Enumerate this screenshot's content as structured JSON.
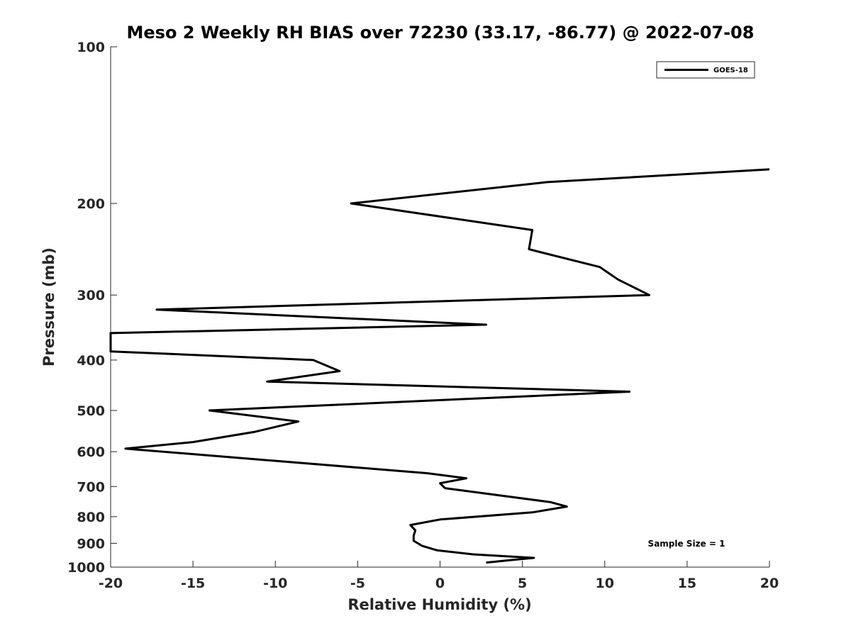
{
  "chart_data": {
    "type": "line",
    "title": "Meso 2 Weekly RH BIAS over 72230 (33.17, -86.77) @ 2022-07-08",
    "xlabel": "Relative Humidity (%)",
    "ylabel": "Pressure (mb)",
    "xlim": [
      -20,
      20
    ],
    "ylim": [
      100,
      1000
    ],
    "y_scale": "log",
    "y_reversed": true,
    "grid": false,
    "legend_position": "top-right",
    "x_ticks": [
      -20,
      -15,
      -10,
      -5,
      0,
      5,
      10,
      15,
      20
    ],
    "x_tick_labels": [
      "-20",
      "-15",
      "-10",
      "-5",
      "0",
      "5",
      "10",
      "15",
      "20"
    ],
    "y_ticks": [
      100,
      200,
      300,
      400,
      500,
      600,
      700,
      800,
      900,
      1000
    ],
    "y_tick_labels": [
      "100",
      "200",
      "300",
      "400",
      "500",
      "600",
      "700",
      "800",
      "900",
      "1000"
    ],
    "annotation": "Sample Size = 1",
    "series": [
      {
        "name": "GOES-18",
        "color": "#000000",
        "points": [
          {
            "x": 20.0,
            "y": 172
          },
          {
            "x": 6.5,
            "y": 182
          },
          {
            "x": -5.4,
            "y": 200
          },
          {
            "x": 5.6,
            "y": 225
          },
          {
            "x": 5.4,
            "y": 245
          },
          {
            "x": 9.7,
            "y": 265
          },
          {
            "x": 10.8,
            "y": 280
          },
          {
            "x": 12.7,
            "y": 300
          },
          {
            "x": -17.2,
            "y": 320
          },
          {
            "x": 2.8,
            "y": 342
          },
          {
            "x": -20.0,
            "y": 355
          },
          {
            "x": -20.0,
            "y": 385
          },
          {
            "x": -7.7,
            "y": 400
          },
          {
            "x": -6.1,
            "y": 420
          },
          {
            "x": -10.5,
            "y": 440
          },
          {
            "x": 11.5,
            "y": 460
          },
          {
            "x": -14.0,
            "y": 500
          },
          {
            "x": -8.6,
            "y": 525
          },
          {
            "x": -11.3,
            "y": 550
          },
          {
            "x": -15.0,
            "y": 575
          },
          {
            "x": -19.1,
            "y": 592
          },
          {
            "x": -0.8,
            "y": 660
          },
          {
            "x": 1.6,
            "y": 675
          },
          {
            "x": 0.0,
            "y": 690
          },
          {
            "x": 0.3,
            "y": 705
          },
          {
            "x": 6.7,
            "y": 750
          },
          {
            "x": 7.7,
            "y": 765
          },
          {
            "x": 5.6,
            "y": 785
          },
          {
            "x": 0.0,
            "y": 810
          },
          {
            "x": -1.8,
            "y": 830
          },
          {
            "x": -1.5,
            "y": 850
          },
          {
            "x": -1.6,
            "y": 870
          },
          {
            "x": -1.6,
            "y": 890
          },
          {
            "x": -1.1,
            "y": 910
          },
          {
            "x": -0.2,
            "y": 928
          },
          {
            "x": 2.0,
            "y": 945
          },
          {
            "x": 5.7,
            "y": 960
          },
          {
            "x": 4.5,
            "y": 968
          },
          {
            "x": 2.8,
            "y": 980
          }
        ]
      }
    ]
  }
}
